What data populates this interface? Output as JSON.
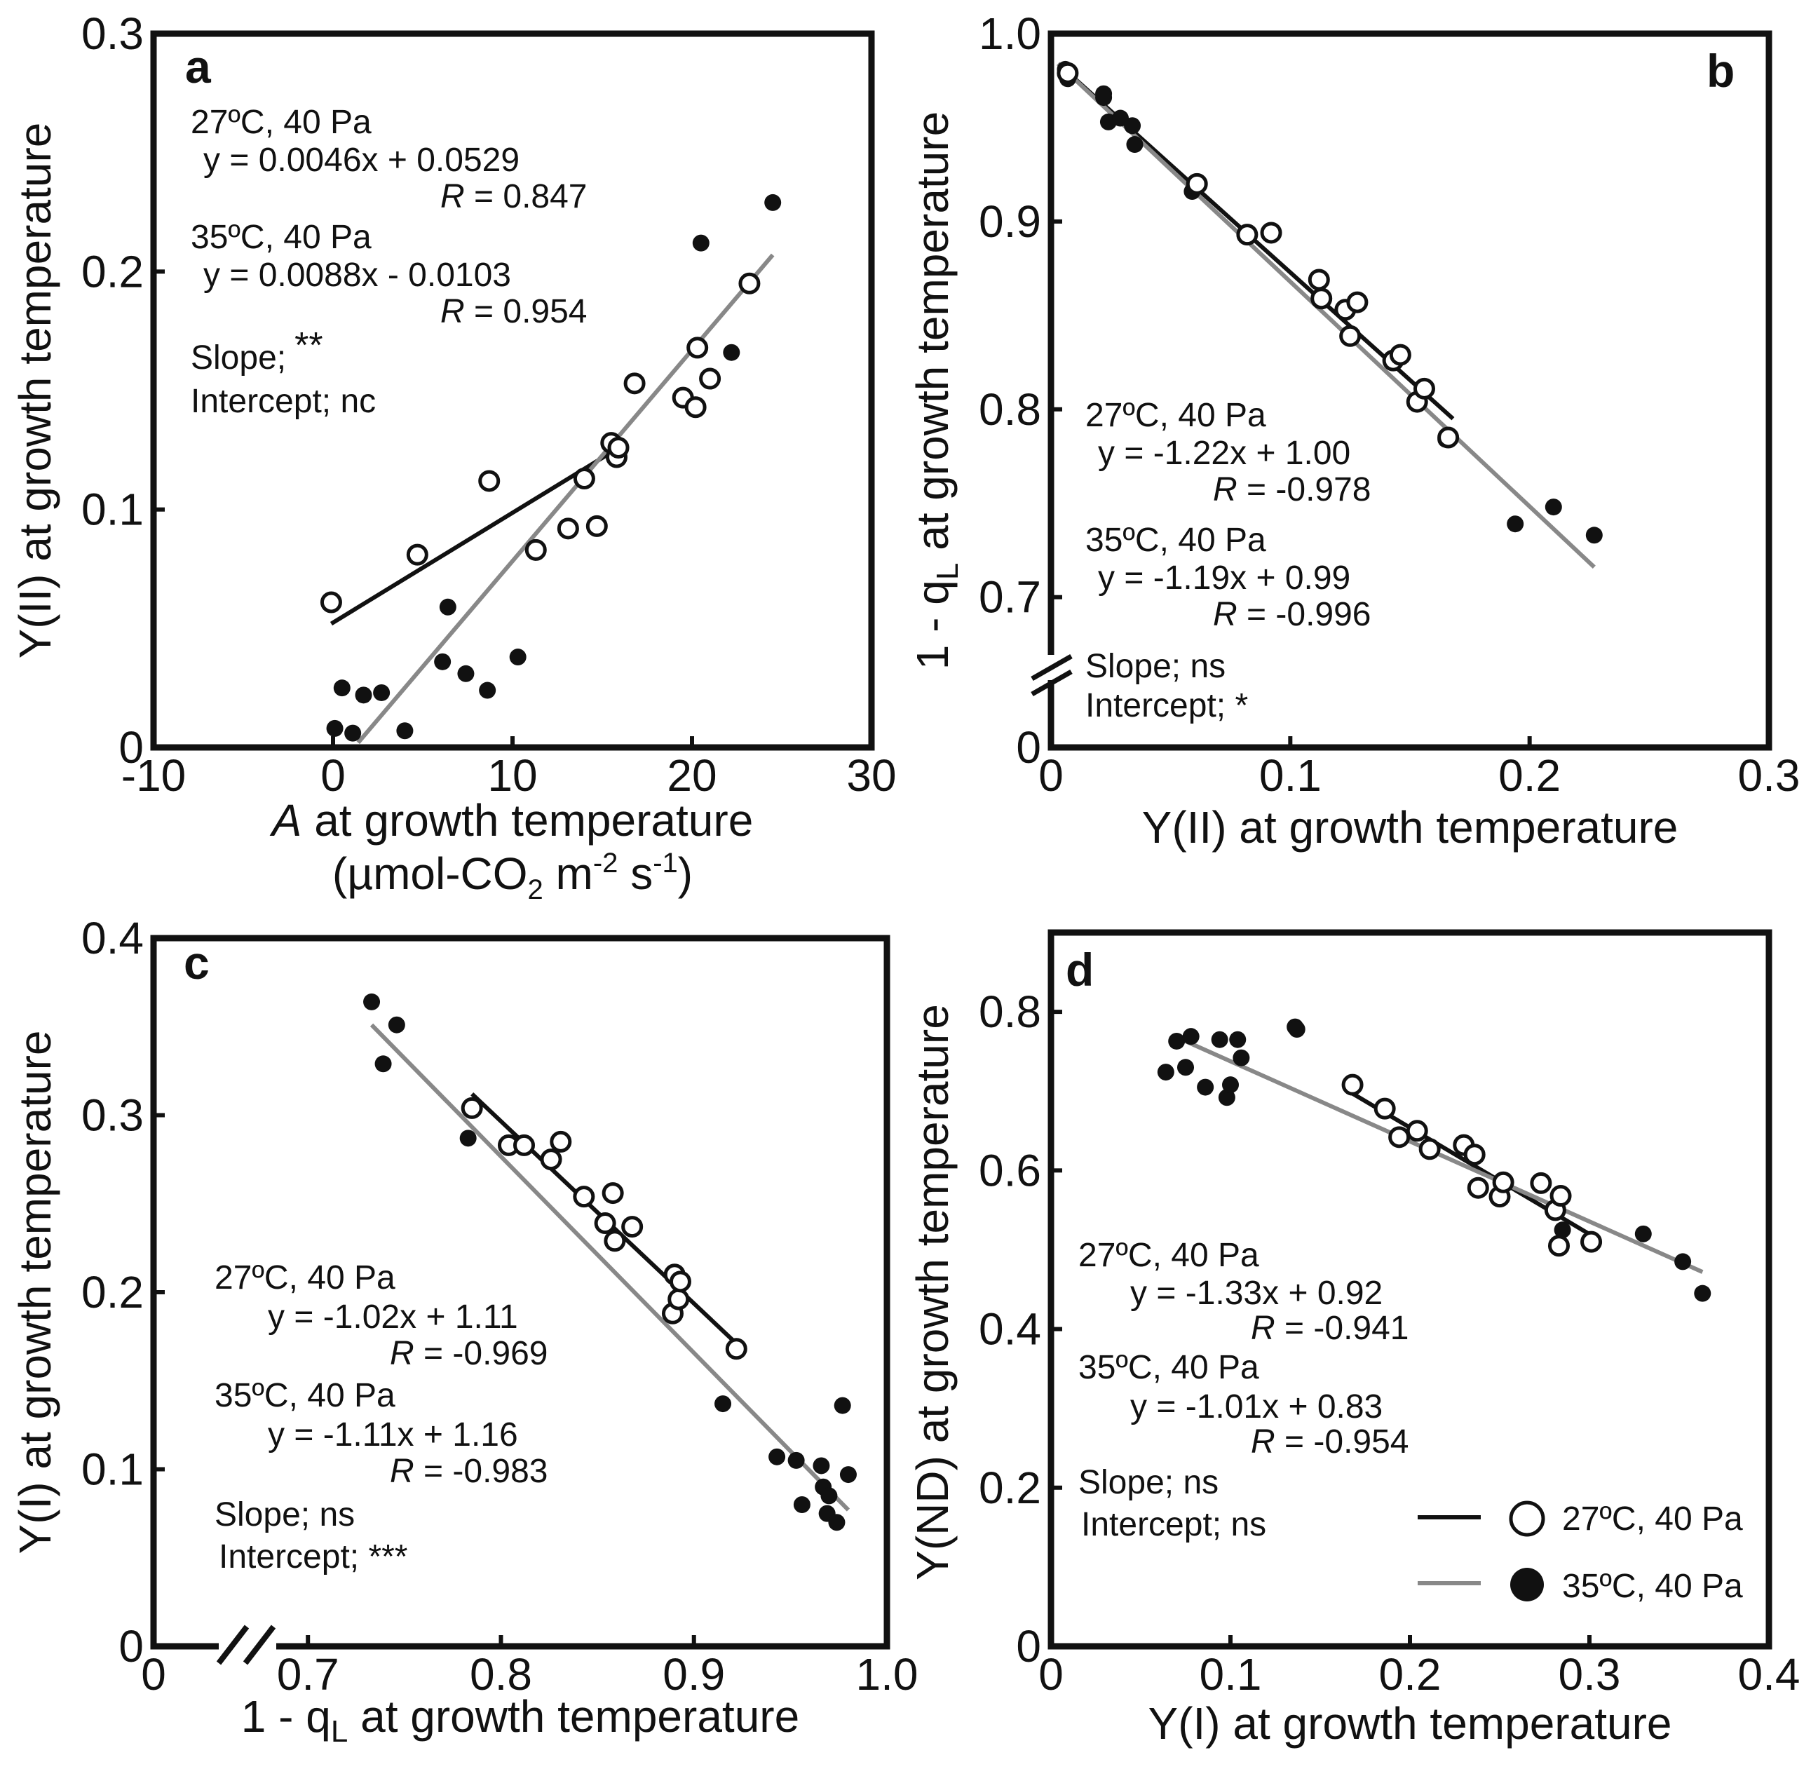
{
  "chart_data": [
    {
      "id": "a",
      "type": "scatter",
      "panel_label": "a",
      "xlabel_italic": "A",
      "xlabel": " at growth temperature",
      "xlabel_units": [
        "(µmol-CO",
        "2",
        " m",
        "-2",
        " s",
        "-1",
        ")"
      ],
      "ylabel": "Y(II) at growth temperature",
      "xlim": [
        -10,
        30
      ],
      "ylim": [
        0,
        0.3
      ],
      "xticks": [
        -10,
        0,
        10,
        20,
        30
      ],
      "xtick_labels": [
        "-10",
        "0",
        "10",
        "20",
        "30"
      ],
      "yticks": [
        0,
        0.1,
        0.2,
        0.3
      ],
      "ytick_labels": [
        "0",
        "0.1",
        "0.2",
        "0.3"
      ],
      "series": [
        {
          "name": "27ºC, 40 Pa",
          "marker": "open",
          "line_color": "#111111",
          "fit_x": [
            -0.1,
            15.5
          ],
          "fit_y": [
            0.052,
            0.124
          ],
          "points": [
            [
              -0.1,
              0.061
            ],
            [
              4.7,
              0.081
            ],
            [
              8.7,
              0.112
            ],
            [
              11.3,
              0.083
            ],
            [
              13.1,
              0.092
            ],
            [
              14.0,
              0.113
            ],
            [
              14.7,
              0.093
            ],
            [
              15.5,
              0.128
            ],
            [
              15.8,
              0.122
            ],
            [
              15.9,
              0.126
            ],
            [
              16.8,
              0.153
            ],
            [
              19.5,
              0.147
            ],
            [
              20.2,
              0.143
            ],
            [
              20.3,
              0.168
            ],
            [
              21.0,
              0.155
            ],
            [
              23.2,
              0.195
            ]
          ]
        },
        {
          "name": "35ºC, 40 Pa",
          "marker": "filled",
          "line_color": "#888888",
          "fit_x": [
            1.4,
            24.5
          ],
          "fit_y": [
            0.002,
            0.207
          ],
          "points": [
            [
              0.1,
              0.008
            ],
            [
              0.5,
              0.025
            ],
            [
              1.1,
              0.006
            ],
            [
              1.7,
              0.022
            ],
            [
              2.7,
              0.023
            ],
            [
              4.0,
              0.007
            ],
            [
              6.1,
              0.036
            ],
            [
              6.4,
              0.059
            ],
            [
              7.4,
              0.031
            ],
            [
              8.6,
              0.024
            ],
            [
              10.3,
              0.038
            ],
            [
              20.5,
              0.212
            ],
            [
              22.2,
              0.166
            ],
            [
              24.5,
              0.229
            ]
          ]
        }
      ],
      "annotations": {
        "s1": "27ºC, 40 Pa",
        "s1_eq": "y = 0.0046x + 0.0529",
        "s1_r": "= 0.847",
        "s2": "35ºC, 40 Pa",
        "s2_eq": "y = 0.0088x - 0.0103",
        "s2_r": "= 0.954",
        "r_symbol": "R",
        "slope": "Slope;",
        "slope_sig": "**",
        "intercept": "Intercept; nc"
      }
    },
    {
      "id": "b",
      "type": "scatter",
      "panel_label": "b",
      "xlabel": "Y(II) at growth temperature",
      "ylabel_parts": [
        "1 - q",
        "L",
        " at growth temperature"
      ],
      "xlim": [
        0,
        0.3
      ],
      "ylim": [
        0.62,
        1.0
      ],
      "axis_break": "y",
      "xticks": [
        0,
        0.1,
        0.2,
        0.3
      ],
      "xtick_labels": [
        "0",
        "0.1",
        "0.2",
        "0.3"
      ],
      "yticks": [
        0.62,
        0.7,
        0.8,
        0.9,
        1.0
      ],
      "ytick_labels": [
        "0",
        "0.7",
        "0.8",
        "0.9",
        "1.0"
      ],
      "series": [
        {
          "name": "27ºC, 40 Pa",
          "marker": "open",
          "line_color": "#111111",
          "fit_x": [
            0.003,
            0.168
          ],
          "fit_y": [
            0.984,
            0.795
          ],
          "points": [
            [
              0.007,
              0.979
            ],
            [
              0.061,
              0.92
            ],
            [
              0.082,
              0.893
            ],
            [
              0.092,
              0.894
            ],
            [
              0.112,
              0.869
            ],
            [
              0.113,
              0.859
            ],
            [
              0.123,
              0.853
            ],
            [
              0.125,
              0.839
            ],
            [
              0.128,
              0.857
            ],
            [
              0.143,
              0.826
            ],
            [
              0.146,
              0.829
            ],
            [
              0.153,
              0.804
            ],
            [
              0.156,
              0.811
            ],
            [
              0.166,
              0.785
            ]
          ]
        },
        {
          "name": "35ºC, 40 Pa",
          "marker": "filled",
          "line_color": "#888888",
          "fit_x": [
            0.003,
            0.227
          ],
          "fit_y": [
            0.984,
            0.716
          ],
          "points": [
            [
              0.006,
              0.981
            ],
            [
              0.007,
              0.976
            ],
            [
              0.022,
              0.968
            ],
            [
              0.022,
              0.966
            ],
            [
              0.024,
              0.953
            ],
            [
              0.029,
              0.955
            ],
            [
              0.034,
              0.951
            ],
            [
              0.035,
              0.941
            ],
            [
              0.059,
              0.916
            ],
            [
              0.165,
              0.784
            ],
            [
              0.194,
              0.739
            ],
            [
              0.21,
              0.748
            ],
            [
              0.227,
              0.733
            ]
          ]
        }
      ],
      "annotations": {
        "s1": "27ºC, 40 Pa",
        "s1_eq": "y = -1.22x + 1.00",
        "s1_r": "= -0.978",
        "s2": "35ºC, 40 Pa",
        "s2_eq": "y = -1.19x + 0.99",
        "s2_r": "= -0.996",
        "r_symbol": "R",
        "slope": "Slope;  ns",
        "slope_sig": "",
        "intercept": "Intercept; *"
      }
    },
    {
      "id": "c",
      "type": "scatter",
      "panel_label": "c",
      "xlabel_parts": [
        "1 - q",
        "L",
        " at growth temperature"
      ],
      "ylabel": "Y(I) at growth temperature",
      "xlim": [
        0.62,
        1.0
      ],
      "ylim": [
        0,
        0.4
      ],
      "axis_break": "x",
      "xticks": [
        0.62,
        0.7,
        0.8,
        0.9,
        1.0
      ],
      "xtick_labels": [
        "0",
        "0.7",
        "0.8",
        "0.9",
        "1.0"
      ],
      "yticks": [
        0,
        0.1,
        0.2,
        0.3,
        0.4
      ],
      "ytick_labels": [
        "0",
        "0.1",
        "0.2",
        "0.3",
        "0.4"
      ],
      "series": [
        {
          "name": "27ºC, 40 Pa",
          "marker": "open",
          "line_color": "#111111",
          "fit_x": [
            0.785,
            0.922
          ],
          "fit_y": [
            0.312,
            0.171
          ],
          "points": [
            [
              0.785,
              0.304
            ],
            [
              0.804,
              0.283
            ],
            [
              0.812,
              0.283
            ],
            [
              0.826,
              0.275
            ],
            [
              0.831,
              0.285
            ],
            [
              0.843,
              0.254
            ],
            [
              0.854,
              0.239
            ],
            [
              0.858,
              0.256
            ],
            [
              0.859,
              0.229
            ],
            [
              0.868,
              0.237
            ],
            [
              0.889,
              0.188
            ],
            [
              0.89,
              0.21
            ],
            [
              0.892,
              0.196
            ],
            [
              0.893,
              0.206
            ],
            [
              0.922,
              0.168
            ]
          ]
        },
        {
          "name": "35ºC, 40 Pa",
          "marker": "filled",
          "line_color": "#888888",
          "fit_x": [
            0.733,
            0.98
          ],
          "fit_y": [
            0.351,
            0.077
          ],
          "points": [
            [
              0.733,
              0.364
            ],
            [
              0.739,
              0.329
            ],
            [
              0.746,
              0.351
            ],
            [
              0.783,
              0.287
            ],
            [
              0.915,
              0.137
            ],
            [
              0.943,
              0.107
            ],
            [
              0.953,
              0.105
            ],
            [
              0.956,
              0.08
            ],
            [
              0.966,
              0.102
            ],
            [
              0.967,
              0.09
            ],
            [
              0.969,
              0.075
            ],
            [
              0.97,
              0.085
            ],
            [
              0.974,
              0.07
            ],
            [
              0.977,
              0.136
            ],
            [
              0.98,
              0.097
            ]
          ]
        }
      ],
      "annotations": {
        "s1": "27ºC, 40 Pa",
        "s1_eq": "y = -1.02x + 1.11",
        "s1_r": "= -0.969",
        "s2": "35ºC, 40 Pa",
        "s2_eq": "y = -1.11x + 1.16",
        "s2_r": "= -0.983",
        "r_symbol": "R",
        "slope": "Slope;  ns",
        "slope_sig": "",
        "intercept": "Intercept; ***"
      }
    },
    {
      "id": "d",
      "type": "scatter",
      "panel_label": "d",
      "xlabel": "Y(I) at growth temperature",
      "ylabel": "Y(ND) at growth temperature",
      "xlim": [
        0,
        0.4
      ],
      "ylim": [
        0,
        0.9
      ],
      "xticks": [
        0,
        0.1,
        0.2,
        0.3,
        0.4
      ],
      "xtick_labels": [
        "0",
        "0.1",
        "0.2",
        "0.3",
        "0.4"
      ],
      "yticks": [
        0,
        0.2,
        0.4,
        0.6,
        0.8
      ],
      "ytick_labels": [
        "0",
        "0.2",
        "0.4",
        "0.6",
        "0.8"
      ],
      "series": [
        {
          "name": "27ºC, 40 Pa",
          "marker": "open",
          "line_color": "#111111",
          "fit_x": [
            0.168,
            0.302
          ],
          "fit_y": [
            0.697,
            0.517
          ],
          "points": [
            [
              0.168,
              0.708
            ],
            [
              0.186,
              0.678
            ],
            [
              0.194,
              0.642
            ],
            [
              0.204,
              0.65
            ],
            [
              0.211,
              0.627
            ],
            [
              0.23,
              0.632
            ],
            [
              0.236,
              0.62
            ],
            [
              0.238,
              0.578
            ],
            [
              0.25,
              0.567
            ],
            [
              0.252,
              0.585
            ],
            [
              0.273,
              0.584
            ],
            [
              0.281,
              0.55
            ],
            [
              0.283,
              0.505
            ],
            [
              0.284,
              0.568
            ],
            [
              0.301,
              0.51
            ]
          ]
        },
        {
          "name": "35ºC, 40 Pa",
          "marker": "filled",
          "line_color": "#888888",
          "fit_x": [
            0.068,
            0.363
          ],
          "fit_y": [
            0.77,
            0.472
          ],
          "points": [
            [
              0.064,
              0.724
            ],
            [
              0.07,
              0.763
            ],
            [
              0.075,
              0.73
            ],
            [
              0.078,
              0.769
            ],
            [
              0.086,
              0.705
            ],
            [
              0.094,
              0.765
            ],
            [
              0.098,
              0.692
            ],
            [
              0.1,
              0.708
            ],
            [
              0.104,
              0.765
            ],
            [
              0.106,
              0.742
            ],
            [
              0.136,
              0.781
            ],
            [
              0.137,
              0.778
            ],
            [
              0.285,
              0.525
            ],
            [
              0.33,
              0.52
            ],
            [
              0.352,
              0.485
            ],
            [
              0.363,
              0.445
            ]
          ]
        }
      ],
      "annotations": {
        "s1": "27ºC, 40 Pa",
        "s1_eq": "y = -1.33x + 0.92",
        "s1_r": "= -0.941",
        "s2": "35ºC, 40 Pa",
        "s2_eq": "y = -1.01x + 0.83",
        "s2_r": "= -0.954",
        "r_symbol": "R",
        "slope": "Slope;  ns",
        "slope_sig": "",
        "intercept": "Intercept; ns"
      },
      "legend": {
        "position": "bottom-right",
        "entries": [
          "27ºC, 40 Pa",
          "35ºC, 40 Pa"
        ]
      }
    }
  ]
}
